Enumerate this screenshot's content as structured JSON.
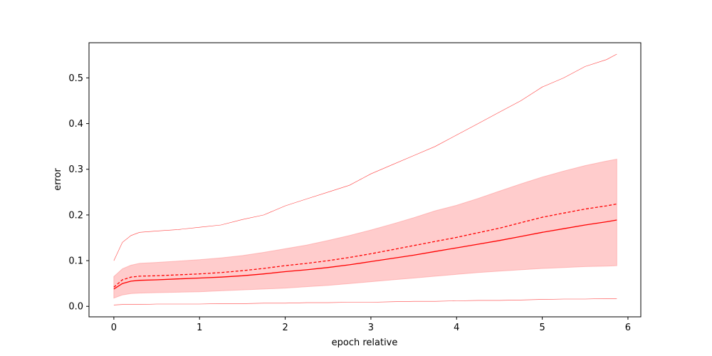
{
  "chart_data": {
    "type": "line",
    "xlabel": "epoch relative",
    "ylabel": "error",
    "xlim": [
      -0.29,
      6.15
    ],
    "ylim": [
      -0.023,
      0.577
    ],
    "x_ticks": [
      0,
      1,
      2,
      3,
      4,
      5,
      6
    ],
    "y_ticks": [
      0.0,
      0.1,
      0.2,
      0.3,
      0.4,
      0.5
    ],
    "grid": false,
    "color": "#ff0000",
    "band_color": "#ffcccc",
    "x": [
      0,
      0.1,
      0.2,
      0.3,
      0.5,
      0.75,
      1.0,
      1.25,
      1.5,
      1.75,
      2.0,
      2.25,
      2.5,
      2.75,
      3.0,
      3.25,
      3.5,
      3.75,
      4.0,
      4.25,
      4.5,
      4.75,
      5.0,
      5.25,
      5.5,
      5.75,
      5.87
    ],
    "series": [
      {
        "style": "solid",
        "values": [
          0.038,
          0.05,
          0.055,
          0.057,
          0.058,
          0.06,
          0.062,
          0.064,
          0.067,
          0.071,
          0.076,
          0.08,
          0.085,
          0.091,
          0.098,
          0.105,
          0.112,
          0.12,
          0.128,
          0.136,
          0.144,
          0.153,
          0.162,
          0.17,
          0.178,
          0.185,
          0.189
        ]
      },
      {
        "style": "dashed",
        "values": [
          0.042,
          0.058,
          0.064,
          0.066,
          0.067,
          0.069,
          0.071,
          0.074,
          0.078,
          0.083,
          0.089,
          0.094,
          0.1,
          0.107,
          0.115,
          0.124,
          0.133,
          0.142,
          0.151,
          0.161,
          0.171,
          0.183,
          0.195,
          0.204,
          0.213,
          0.22,
          0.224
        ]
      },
      {
        "style": "band-upper",
        "values": [
          0.065,
          0.082,
          0.09,
          0.094,
          0.096,
          0.099,
          0.102,
          0.106,
          0.111,
          0.118,
          0.126,
          0.134,
          0.144,
          0.155,
          0.167,
          0.18,
          0.194,
          0.209,
          0.221,
          0.236,
          0.252,
          0.268,
          0.283,
          0.296,
          0.308,
          0.318,
          0.322
        ]
      },
      {
        "style": "band-lower",
        "values": [
          0.018,
          0.025,
          0.028,
          0.029,
          0.03,
          0.031,
          0.032,
          0.034,
          0.036,
          0.038,
          0.04,
          0.043,
          0.046,
          0.05,
          0.054,
          0.058,
          0.062,
          0.066,
          0.07,
          0.074,
          0.077,
          0.08,
          0.083,
          0.085,
          0.087,
          0.088,
          0.089
        ]
      },
      {
        "style": "thin-max",
        "values": [
          0.1,
          0.14,
          0.155,
          0.162,
          0.165,
          0.168,
          0.173,
          0.178,
          0.19,
          0.2,
          0.22,
          0.235,
          0.25,
          0.265,
          0.29,
          0.31,
          0.33,
          0.35,
          0.375,
          0.4,
          0.425,
          0.45,
          0.48,
          0.5,
          0.525,
          0.54,
          0.552
        ]
      },
      {
        "style": "thin-min",
        "values": [
          0.003,
          0.004,
          0.004,
          0.004,
          0.005,
          0.005,
          0.005,
          0.006,
          0.006,
          0.007,
          0.007,
          0.008,
          0.008,
          0.009,
          0.009,
          0.01,
          0.011,
          0.011,
          0.012,
          0.013,
          0.013,
          0.014,
          0.015,
          0.016,
          0.016,
          0.017,
          0.017
        ]
      }
    ]
  }
}
